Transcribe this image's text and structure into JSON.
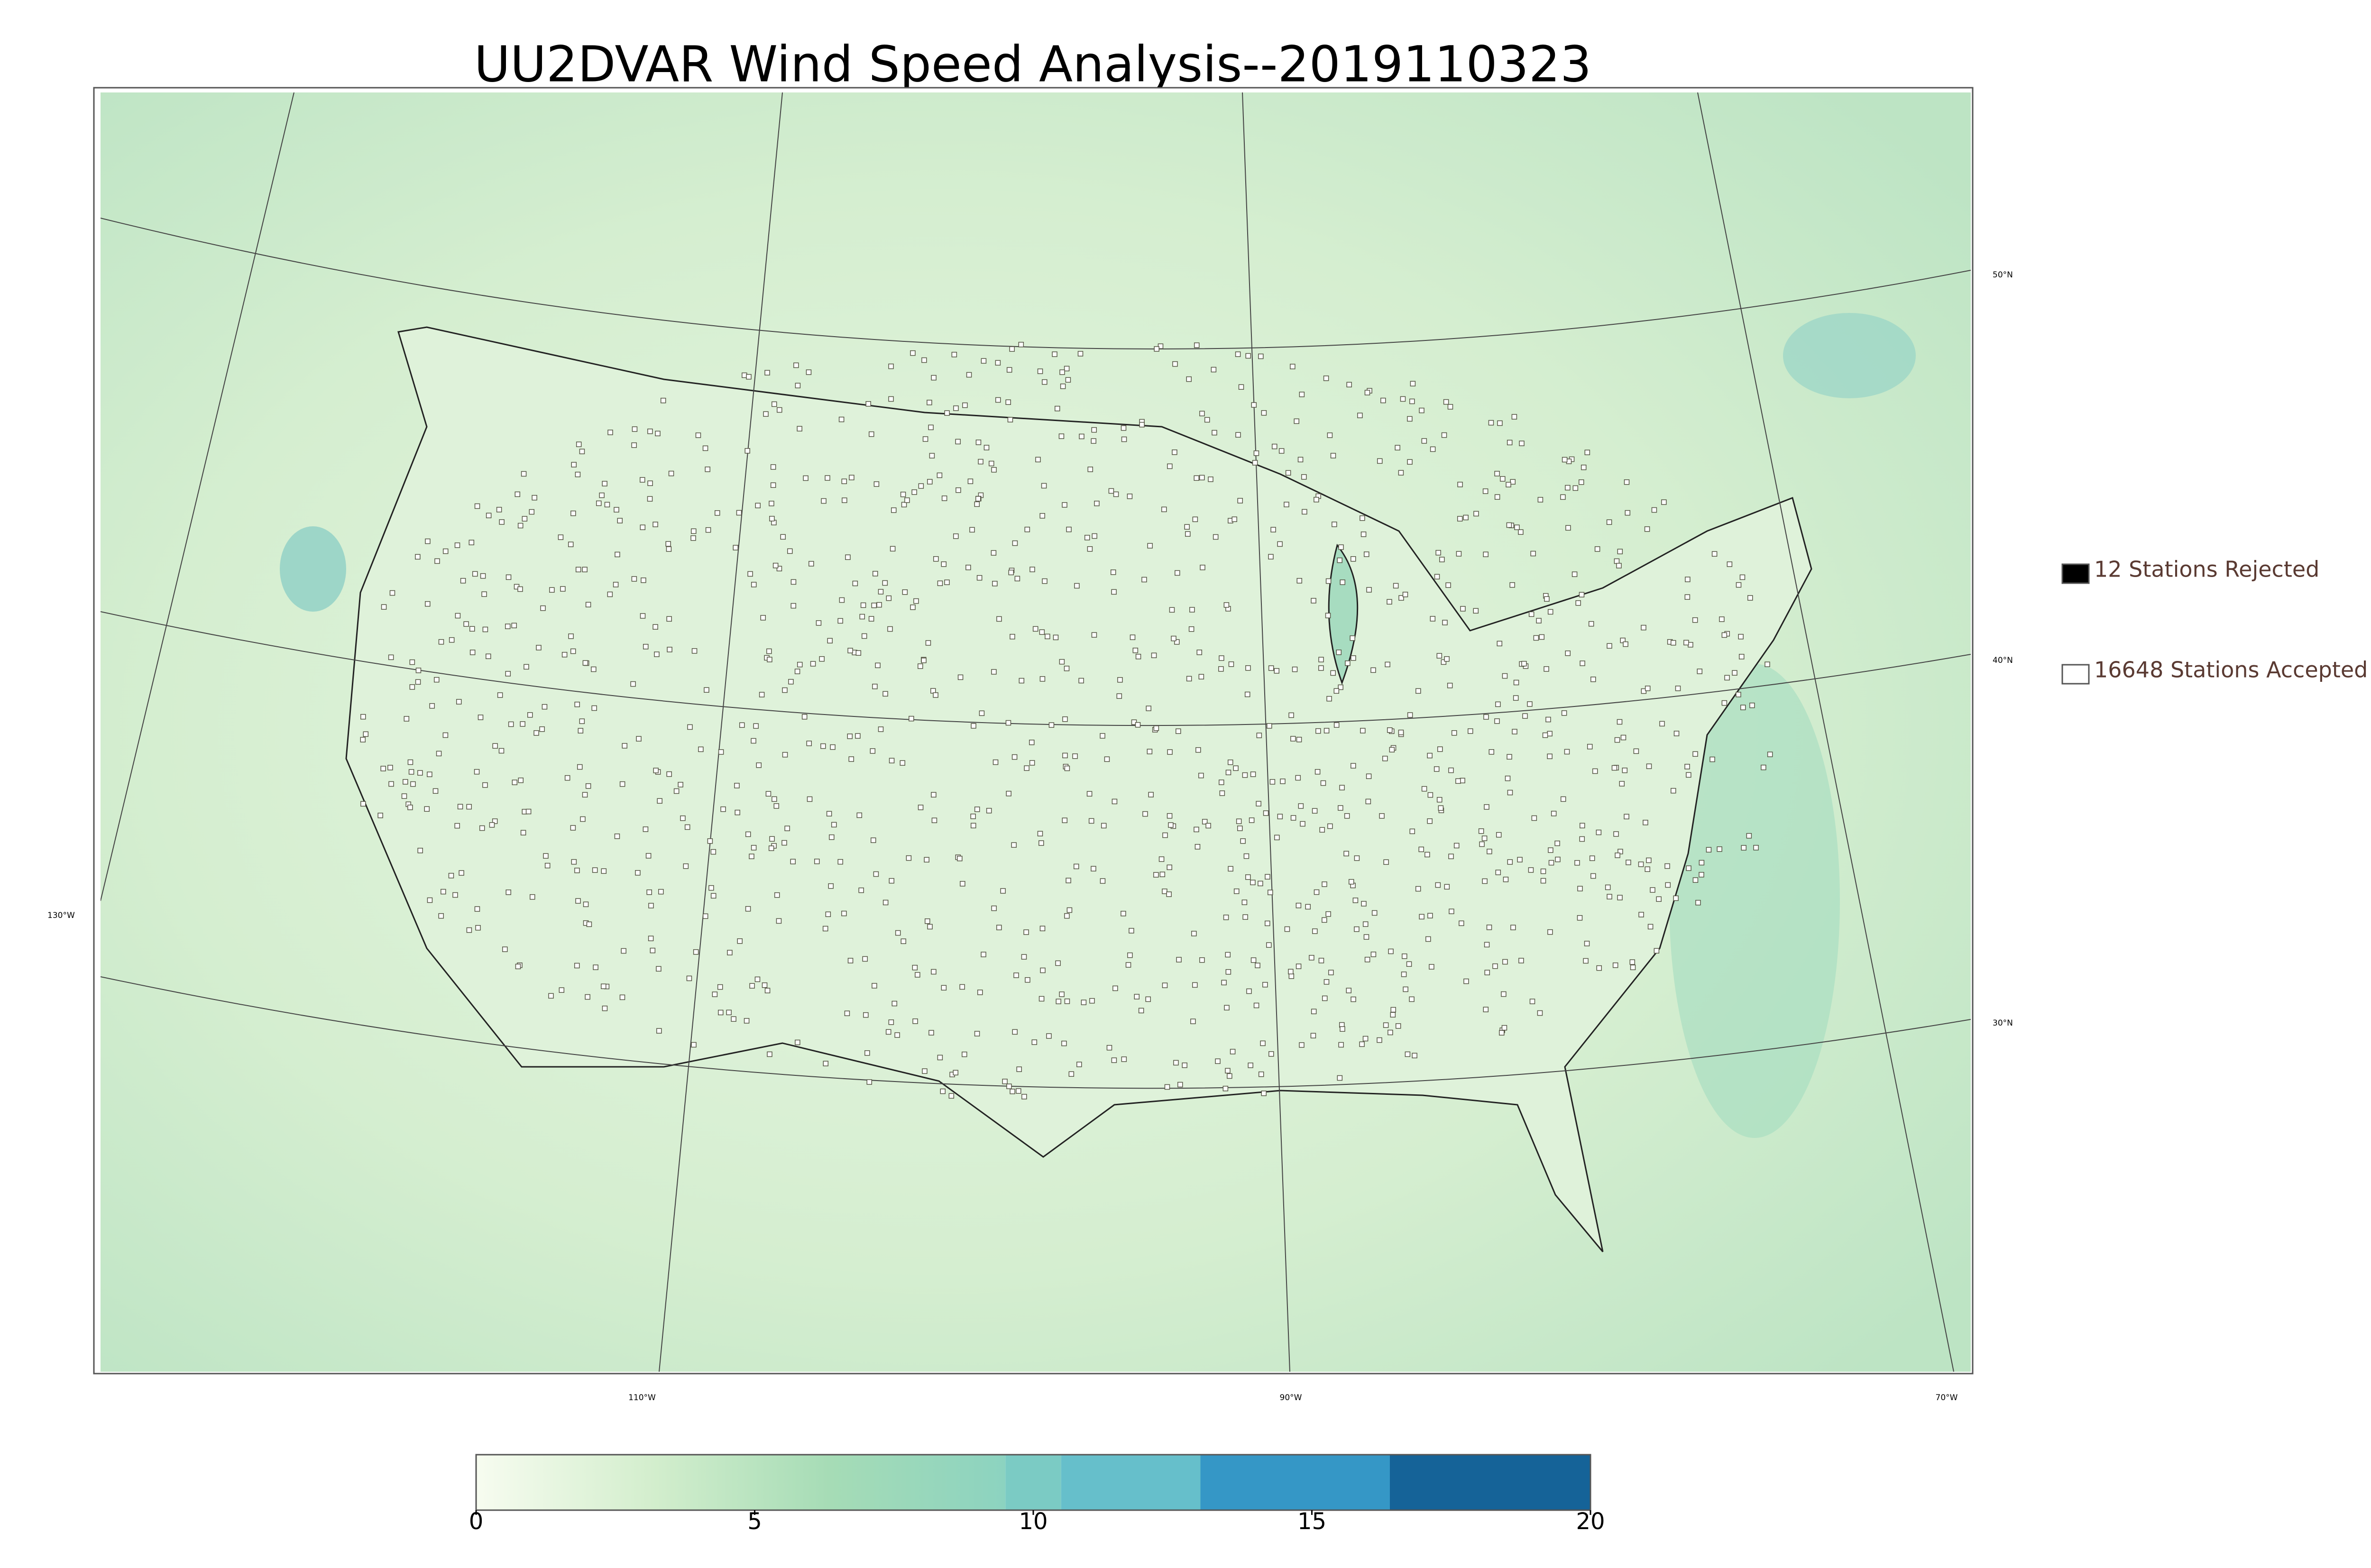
{
  "title": "UU2DVAR Wind Speed Analysis--2019110323",
  "map": {
    "latitude_labels": [
      "50°N",
      "40°N",
      "30°N"
    ],
    "longitude_labels": [
      "130°W",
      "110°W",
      "90°W",
      "70°W"
    ]
  },
  "legend": {
    "items": [
      {
        "label": "12 Stations Rejected",
        "color": "#000000"
      },
      {
        "label": "16648 Stations Accepted",
        "color": "#ffffff"
      }
    ]
  },
  "colorbar": {
    "lim": [
      0,
      20
    ],
    "ticks": [
      0,
      5,
      10,
      15,
      20
    ],
    "bands": [
      {
        "from": 0,
        "to": 9.5,
        "colors": [
          "#f7fcf0",
          "#d3eecd",
          "#a6dcb6",
          "#8cd3c0"
        ]
      },
      {
        "from": 9.5,
        "to": 10.5,
        "colors": [
          "#7bcbc4"
        ]
      },
      {
        "from": 10.5,
        "to": 13,
        "colors": [
          "#66bfcb"
        ]
      },
      {
        "from": 13,
        "to": 16.4,
        "colors": [
          "#3597c6"
        ]
      },
      {
        "from": 16.4,
        "to": 20,
        "colors": [
          "#156398"
        ]
      }
    ]
  }
}
